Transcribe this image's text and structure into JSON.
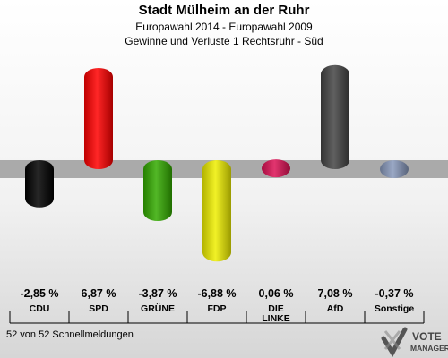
{
  "header": {
    "title": "Stadt Mülheim an der Ruhr",
    "subtitle1": "Europawahl 2014 - Europawahl 2009",
    "subtitle2": "Gewinne und Verluste 1 Rechtsruhr - Süd"
  },
  "footer": {
    "text": "52 von 52 Schnellmeldungen"
  },
  "logo": {
    "line1": "VOTE",
    "line2": "MANAGER"
  },
  "chart_data": {
    "type": "bar",
    "categories": [
      "CDU",
      "SPD",
      "GRÜNE",
      "FDP",
      "DIE LINKE",
      "AfD",
      "Sonstige"
    ],
    "category_lines": [
      [
        "CDU"
      ],
      [
        "SPD"
      ],
      [
        "GRÜNE"
      ],
      [
        "FDP"
      ],
      [
        "DIE",
        "LINKE"
      ],
      [
        "AfD"
      ],
      [
        "Sonstige"
      ]
    ],
    "values": [
      -2.85,
      6.87,
      -3.87,
      -6.88,
      0.06,
      7.08,
      -0.37
    ],
    "value_labels": [
      "-2,85 %",
      "6,87 %",
      "-3,87 %",
      "-6,88 %",
      "0,06 %",
      "7,08 %",
      "-0,37 %"
    ],
    "colors": [
      "#000000",
      "#ff0000",
      "#33aa00",
      "#eeee00",
      "#dd1155",
      "#444444",
      "#8899bb"
    ],
    "title": "Stadt Mülheim an der Ruhr",
    "xlabel": "",
    "ylabel": "",
    "grid": false,
    "legend": "none"
  }
}
